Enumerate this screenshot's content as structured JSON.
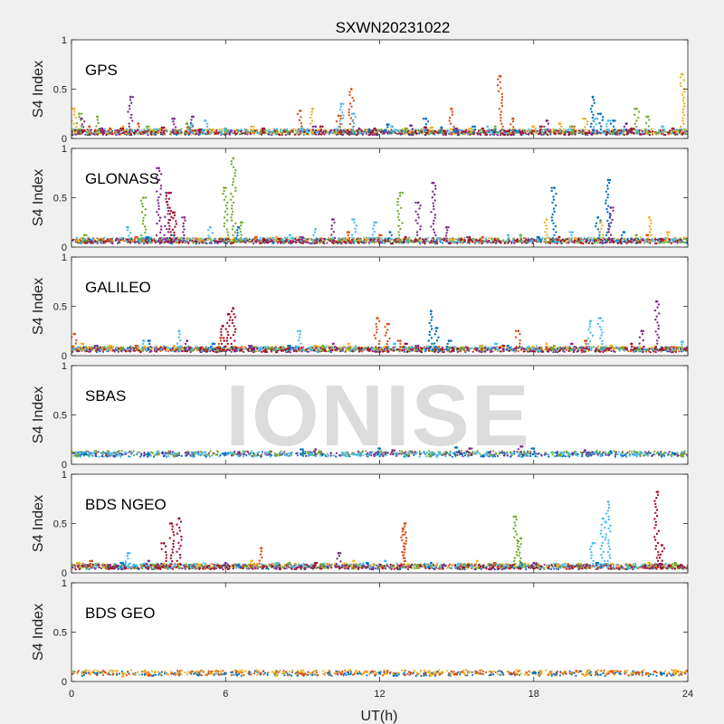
{
  "chart_data": {
    "type": "scatter",
    "title": "SXWN20231022",
    "xlabel": "UT(h)",
    "ylabel": "S4 Index",
    "watermark": "IONISE",
    "xlim": [
      0,
      24
    ],
    "x_ticks": [
      "0",
      "6",
      "12",
      "18",
      "24"
    ],
    "ylim": [
      0,
      1
    ],
    "y_ticks": [
      "0",
      "0.5",
      "1"
    ],
    "grid": false,
    "colors": [
      "#0072bd",
      "#d95319",
      "#edb120",
      "#7e2f8e",
      "#77ac30",
      "#4dbeee",
      "#a2142f"
    ],
    "panels": [
      {
        "label": "GPS",
        "baseline": 0.06,
        "series": [
          {
            "color": "#0072bd",
            "x": [
              11.0,
              11.6,
              12.3,
              13.8,
              14.4,
              15.0,
              15.7,
              16.5,
              17.3,
              20.3,
              20.6,
              21.1
            ],
            "y": [
              0.05,
              0.09,
              0.14,
              0.2,
              0.11,
              0.08,
              0.12,
              0.09,
              0.08,
              0.42,
              0.25,
              0.18
            ]
          },
          {
            "color": "#d95319",
            "x": [
              0.7,
              1.5,
              2.6,
              4.6,
              8.9,
              10.4,
              10.9,
              14.8,
              16.7,
              17.2,
              19.5
            ],
            "y": [
              0.12,
              0.1,
              0.15,
              0.11,
              0.28,
              0.23,
              0.5,
              0.3,
              0.63,
              0.2,
              0.12
            ]
          },
          {
            "color": "#edb120",
            "x": [
              0.1,
              2.0,
              3.5,
              5.5,
              7.0,
              9.4,
              14.0,
              15.5,
              18.0,
              19.0,
              20.0,
              23.8
            ],
            "y": [
              0.3,
              0.12,
              0.1,
              0.09,
              0.12,
              0.3,
              0.11,
              0.1,
              0.12,
              0.15,
              0.2,
              0.65
            ]
          },
          {
            "color": "#7e2f8e",
            "x": [
              0.4,
              1.2,
              2.3,
              4.0,
              4.7,
              9.5,
              11.2,
              13.2,
              15.0,
              18.5,
              21.6
            ],
            "y": [
              0.2,
              0.1,
              0.42,
              0.2,
              0.22,
              0.12,
              0.1,
              0.13,
              0.1,
              0.18,
              0.15
            ]
          },
          {
            "color": "#77ac30",
            "x": [
              0.3,
              1.0,
              3.0,
              4.5,
              6.0,
              8.0,
              13.0,
              16.5,
              19.5,
              22.0,
              22.4
            ],
            "y": [
              0.25,
              0.22,
              0.12,
              0.15,
              0.1,
              0.08,
              0.1,
              0.12,
              0.12,
              0.3,
              0.22
            ]
          },
          {
            "color": "#4dbeee",
            "x": [
              4.7,
              5.2,
              6.0,
              9.0,
              10.5,
              11.0,
              12.5,
              16.2,
              20.4,
              20.9,
              23.0
            ],
            "y": [
              0.14,
              0.18,
              0.1,
              0.1,
              0.35,
              0.25,
              0.12,
              0.12,
              0.2,
              0.18,
              0.12
            ]
          },
          {
            "color": "#a2142f",
            "x": [
              0.5,
              2.0,
              3.6,
              5.0,
              7.5,
              9.7,
              11.8,
              13.8,
              16.0,
              18.3,
              21.8,
              23.4
            ],
            "y": [
              0.08,
              0.1,
              0.11,
              0.09,
              0.1,
              0.12,
              0.1,
              0.11,
              0.1,
              0.12,
              0.1,
              0.1
            ]
          }
        ]
      },
      {
        "label": "GLONASS",
        "baseline": 0.06,
        "series": [
          {
            "color": "#0072bd",
            "x": [
              3.0,
              6.5,
              12.4,
              18.2,
              18.8,
              20.5,
              20.9,
              21.5
            ],
            "y": [
              0.1,
              0.2,
              0.15,
              0.1,
              0.6,
              0.3,
              0.68,
              0.15
            ]
          },
          {
            "color": "#d95319",
            "x": [
              1.5,
              2.5,
              7.2,
              10.8,
              12.0,
              16.0,
              22.4
            ],
            "y": [
              0.08,
              0.1,
              0.1,
              0.15,
              0.12,
              0.1,
              0.12
            ]
          },
          {
            "color": "#edb120",
            "x": [
              0.3,
              5.0,
              8.0,
              11.5,
              14.8,
              18.5,
              20.6,
              22.5,
              23.2
            ],
            "y": [
              0.06,
              0.08,
              0.1,
              0.08,
              0.08,
              0.28,
              0.25,
              0.3,
              0.15
            ]
          },
          {
            "color": "#7e2f8e",
            "x": [
              3.4,
              3.7,
              4.4,
              9.0,
              10.2,
              13.5,
              14.1,
              14.6,
              21.0,
              21.8
            ],
            "y": [
              0.8,
              0.55,
              0.3,
              0.1,
              0.28,
              0.45,
              0.65,
              0.2,
              0.4,
              0.08
            ]
          },
          {
            "color": "#77ac30",
            "x": [
              0.5,
              2.8,
              6.0,
              6.3,
              6.6,
              12.8,
              17.5,
              22.0
            ],
            "y": [
              0.12,
              0.5,
              0.6,
              0.9,
              0.25,
              0.55,
              0.12,
              0.12
            ]
          },
          {
            "color": "#4dbeee",
            "x": [
              2.2,
              4.0,
              5.4,
              8.5,
              9.5,
              11.0,
              11.8,
              17.0,
              19.5,
              23.5
            ],
            "y": [
              0.2,
              0.12,
              0.2,
              0.12,
              0.18,
              0.28,
              0.25,
              0.12,
              0.15,
              0.08
            ]
          },
          {
            "color": "#a2142f",
            "x": [
              3.8,
              4.0,
              7.5,
              13.0,
              15.5,
              19.0,
              23.0
            ],
            "y": [
              0.55,
              0.35,
              0.08,
              0.1,
              0.1,
              0.1,
              0.08
            ]
          }
        ]
      },
      {
        "label": "GALILEO",
        "baseline": 0.06,
        "series": [
          {
            "color": "#0072bd",
            "x": [
              3.0,
              5.5,
              8.5,
              14.0,
              14.2,
              14.7,
              17.0
            ],
            "y": [
              0.15,
              0.12,
              0.1,
              0.45,
              0.28,
              0.15,
              0.1
            ]
          },
          {
            "color": "#d95319",
            "x": [
              0.1,
              2.5,
              5.8,
              11.9,
              12.3,
              12.8,
              17.4,
              20.0
            ],
            "y": [
              0.22,
              0.1,
              0.18,
              0.38,
              0.32,
              0.15,
              0.25,
              0.15
            ]
          },
          {
            "color": "#edb120",
            "x": [
              0.4,
              1.5,
              4.0,
              9.5,
              10.8,
              16.0,
              18.5,
              21.0
            ],
            "y": [
              0.12,
              0.1,
              0.1,
              0.1,
              0.12,
              0.1,
              0.12,
              0.1
            ]
          },
          {
            "color": "#7e2f8e",
            "x": [
              1.0,
              4.5,
              7.0,
              10.2,
              13.5,
              19.5,
              22.2,
              22.8
            ],
            "y": [
              0.1,
              0.15,
              0.1,
              0.12,
              0.1,
              0.12,
              0.25,
              0.55
            ]
          },
          {
            "color": "#77ac30",
            "x": [
              2.0,
              7.8,
              9.8,
              15.2,
              18.8,
              21.5
            ],
            "y": [
              0.08,
              0.08,
              0.1,
              0.08,
              0.1,
              0.08
            ]
          },
          {
            "color": "#4dbeee",
            "x": [
              2.8,
              4.2,
              8.9,
              12.6,
              16.5,
              20.2,
              20.6,
              23.8
            ],
            "y": [
              0.15,
              0.25,
              0.25,
              0.12,
              0.12,
              0.35,
              0.38,
              0.14
            ]
          },
          {
            "color": "#a2142f",
            "x": [
              5.9,
              6.1,
              6.3,
              13.0,
              16.8,
              21.8,
              23.0
            ],
            "y": [
              0.3,
              0.42,
              0.48,
              0.12,
              0.1,
              0.12,
              0.08
            ]
          }
        ]
      },
      {
        "label": "SBAS",
        "baseline": 0.1,
        "series": [
          {
            "color": "#0072bd",
            "x": [
              0.5,
              3.0,
              6.0,
              9.0,
              12.0,
              15.0,
              18.0,
              21.0,
              23.5
            ],
            "y": [
              0.1,
              0.1,
              0.11,
              0.15,
              0.16,
              0.17,
              0.16,
              0.13,
              0.11
            ]
          },
          {
            "color": "#7e2f8e",
            "x": [
              6.5,
              9.5,
              12.5,
              15.5,
              17.5,
              20.0
            ],
            "y": [
              0.12,
              0.15,
              0.14,
              0.16,
              0.18,
              0.14
            ]
          },
          {
            "color": "#77ac30",
            "x": [
              0.2,
              4.0,
              8.0,
              14.0,
              19.0,
              23.8
            ],
            "y": [
              0.08,
              0.08,
              0.09,
              0.08,
              0.09,
              0.08
            ]
          },
          {
            "color": "#4dbeee",
            "x": [
              1.5,
              5.0,
              11.0,
              22.0
            ],
            "y": [
              0.11,
              0.1,
              0.1,
              0.1
            ]
          }
        ]
      },
      {
        "label": "BDS NGEO",
        "baseline": 0.06,
        "series": [
          {
            "color": "#0072bd",
            "x": [
              2.0,
              6.5,
              11.5,
              14.0,
              17.5,
              20.5
            ],
            "y": [
              0.1,
              0.08,
              0.1,
              0.1,
              0.1,
              0.1
            ]
          },
          {
            "color": "#d95319",
            "x": [
              0.8,
              7.4,
              12.9,
              13.0,
              16.5
            ],
            "y": [
              0.12,
              0.25,
              0.45,
              0.5,
              0.1
            ]
          },
          {
            "color": "#edb120",
            "x": [
              0.3,
              5.0,
              7.0,
              11.0,
              15.8,
              19.0,
              22.5
            ],
            "y": [
              0.1,
              0.08,
              0.12,
              0.12,
              0.12,
              0.08,
              0.1
            ]
          },
          {
            "color": "#7e2f8e",
            "x": [
              1.5,
              3.0,
              6.0,
              10.4,
              14.5,
              18.0
            ],
            "y": [
              0.08,
              0.12,
              0.1,
              0.2,
              0.08,
              0.1
            ]
          },
          {
            "color": "#77ac30",
            "x": [
              8.5,
              13.5,
              17.3,
              17.5,
              23.5
            ],
            "y": [
              0.1,
              0.08,
              0.57,
              0.35,
              0.1
            ]
          },
          {
            "color": "#4dbeee",
            "x": [
              2.2,
              8.0,
              12.2,
              20.3,
              20.7,
              20.9
            ],
            "y": [
              0.2,
              0.1,
              0.12,
              0.3,
              0.55,
              0.72
            ]
          },
          {
            "color": "#a2142f",
            "x": [
              3.6,
              3.9,
              4.2,
              9.5,
              22.8,
              23.0
            ],
            "y": [
              0.3,
              0.5,
              0.55,
              0.1,
              0.82,
              0.28
            ]
          }
        ]
      },
      {
        "label": "BDS GEO",
        "baseline": 0.08,
        "series": [
          {
            "color": "#0072bd",
            "x": [
              1.0,
              6.0,
              12.0,
              18.0,
              23.0
            ],
            "y": [
              0.08,
              0.08,
              0.09,
              0.09,
              0.08
            ]
          },
          {
            "color": "#d95319",
            "x": [
              3.0,
              9.0,
              15.0,
              21.0
            ],
            "y": [
              0.06,
              0.07,
              0.07,
              0.1
            ]
          },
          {
            "color": "#edb120",
            "x": [
              2.0,
              8.0,
              14.0,
              20.0
            ],
            "y": [
              0.05,
              0.06,
              0.06,
              0.06
            ]
          }
        ]
      }
    ]
  }
}
